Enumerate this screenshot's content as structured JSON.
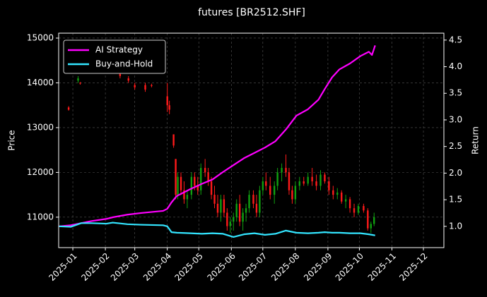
{
  "chart_data": {
    "type": "candlestick-returns",
    "title": "futures [BR2512.SHF]",
    "ylabel": "Price",
    "y2label": "Return",
    "xlim": [
      -13.5,
      353.5
    ],
    "xticks": [
      {
        "value": 0,
        "label": "2025-01"
      },
      {
        "value": 31,
        "label": "2025-02"
      },
      {
        "value": 59,
        "label": "2025-03"
      },
      {
        "value": 90,
        "label": "2025-04"
      },
      {
        "value": 120,
        "label": "2025-05"
      },
      {
        "value": 151,
        "label": "2025-06"
      },
      {
        "value": 181,
        "label": "2025-07"
      },
      {
        "value": 212,
        "label": "2025-08"
      },
      {
        "value": 243,
        "label": "2025-09"
      },
      {
        "value": 273,
        "label": "2025-10"
      },
      {
        "value": 304,
        "label": "2025-11"
      },
      {
        "value": 334,
        "label": "2025-12"
      }
    ],
    "ylim": [
      10320,
      15110
    ],
    "yticks": [
      11000,
      12000,
      13000,
      14000,
      15000
    ],
    "y2lim": [
      0.6,
      4.63
    ],
    "y2ticks": [
      {
        "value": 1,
        "label": "1.0"
      },
      1.5,
      {
        "value": 2,
        "label": "2.0"
      },
      2.5,
      {
        "value": 3,
        "label": "3.0"
      },
      3.5,
      {
        "value": 4,
        "label": "4.0"
      },
      4.5
    ],
    "grid": true,
    "legend": "upper left",
    "up_color": "#10a010",
    "down_color": "#ff1a1a",
    "candles": {
      "x": [
        -4,
        5,
        7,
        45,
        53,
        59,
        69,
        75,
        90,
        92,
        96,
        98,
        100,
        103,
        106,
        109,
        113,
        116,
        119,
        122,
        126,
        129,
        132,
        135,
        138,
        141,
        144,
        147,
        150,
        153,
        156,
        159,
        162,
        165,
        168,
        172,
        175,
        178,
        181,
        184,
        188,
        192,
        195,
        199,
        203,
        206,
        209,
        212,
        216,
        220,
        224,
        228,
        232,
        236,
        240,
        244,
        248,
        252,
        256,
        260,
        264,
        268,
        272,
        277,
        281,
        284,
        287
      ],
      "open": [
        13450,
        14050,
        14000,
        14200,
        14100,
        13950,
        13950,
        13950,
        13700,
        13500,
        12850,
        12300,
        11500,
        11900,
        11600,
        11400,
        11500,
        11900,
        11700,
        11600,
        12100,
        12000,
        11800,
        11500,
        11300,
        11100,
        11400,
        11100,
        10800,
        10900,
        11000,
        11300,
        10900,
        11100,
        11200,
        11500,
        11300,
        11100,
        11600,
        11800,
        11700,
        11500,
        11700,
        12000,
        12100,
        12000,
        11600,
        11400,
        11700,
        11800,
        11750,
        11900,
        11800,
        11700,
        11950,
        11800,
        11600,
        11500,
        11550,
        11350,
        11400,
        11200,
        11100,
        11250,
        11150,
        10750,
        10850
      ],
      "high": [
        13480,
        14150,
        14020,
        14250,
        14150,
        14000,
        14000,
        13980,
        14000,
        13600,
        12850,
        12300,
        12000,
        12000,
        11800,
        11600,
        12000,
        12000,
        11900,
        12200,
        12300,
        12100,
        11900,
        11700,
        11500,
        11500,
        11500,
        11200,
        11000,
        11100,
        11400,
        11500,
        11200,
        11300,
        11600,
        11600,
        11500,
        11700,
        11900,
        12000,
        11900,
        11800,
        12100,
        12200,
        12400,
        12100,
        11700,
        11800,
        11900,
        11900,
        12000,
        12100,
        11950,
        12050,
        12000,
        11900,
        11700,
        11650,
        11600,
        11500,
        11450,
        11300,
        11300,
        11300,
        11200,
        10900,
        11100
      ],
      "low": [
        13380,
        14000,
        13960,
        14100,
        14000,
        13850,
        13800,
        13900,
        13350,
        13300,
        12550,
        11400,
        11400,
        11500,
        11300,
        11200,
        11400,
        11600,
        11500,
        11500,
        11900,
        11700,
        11400,
        11200,
        11000,
        10900,
        11000,
        10700,
        10650,
        10700,
        10900,
        10800,
        10700,
        10900,
        11100,
        11200,
        11000,
        11000,
        11500,
        11600,
        11400,
        11300,
        11600,
        11800,
        11900,
        11500,
        11300,
        11300,
        11600,
        11700,
        11700,
        11700,
        11600,
        11600,
        11750,
        11500,
        11400,
        11400,
        11300,
        11200,
        11100,
        11000,
        11050,
        11100,
        10700,
        10650,
        10800
      ],
      "close": [
        13400,
        14100,
        13990,
        14150,
        14050,
        13900,
        13850,
        13930,
        13500,
        13400,
        12600,
        11500,
        11900,
        11600,
        11400,
        11500,
        11900,
        11700,
        11600,
        12100,
        12000,
        11800,
        11500,
        11300,
        11100,
        11400,
        11100,
        10800,
        10900,
        11000,
        11300,
        10900,
        11100,
        11200,
        11500,
        11300,
        11100,
        11600,
        11800,
        11700,
        11500,
        11700,
        12000,
        12100,
        12000,
        11600,
        11400,
        11700,
        11800,
        11750,
        11900,
        11800,
        11700,
        11950,
        11800,
        11600,
        11500,
        11550,
        11350,
        11400,
        11200,
        11100,
        11250,
        11150,
        10750,
        10850,
        11000
      ]
    },
    "x": [
      -13,
      -2,
      8,
      18,
      32,
      38,
      52,
      65,
      86,
      90,
      94,
      99,
      112,
      123,
      133,
      143,
      153,
      163,
      173,
      183,
      193,
      203,
      213,
      224,
      234,
      240,
      247,
      254,
      264,
      274,
      282,
      285,
      288
    ],
    "series": [
      {
        "name": "AI Strategy",
        "color": "#ff00ff",
        "axis": "y2",
        "values": [
          1.0,
          1.02,
          1.06,
          1.1,
          1.14,
          1.17,
          1.22,
          1.25,
          1.29,
          1.33,
          1.45,
          1.57,
          1.7,
          1.8,
          1.88,
          2.02,
          2.15,
          2.28,
          2.38,
          2.48,
          2.6,
          2.82,
          3.08,
          3.2,
          3.38,
          3.58,
          3.8,
          3.95,
          4.06,
          4.2,
          4.28,
          4.22,
          4.4
        ]
      },
      {
        "name": "Buy-and-Hold",
        "color": "#33e5ff",
        "axis": "y2",
        "values": [
          1.0,
          0.99,
          1.06,
          1.06,
          1.05,
          1.07,
          1.04,
          1.03,
          1.02,
          1.0,
          0.89,
          0.88,
          0.87,
          0.86,
          0.87,
          0.86,
          0.8,
          0.85,
          0.87,
          0.84,
          0.86,
          0.92,
          0.88,
          0.87,
          0.88,
          0.89,
          0.88,
          0.88,
          0.87,
          0.87,
          0.85,
          0.84,
          0.83
        ]
      }
    ]
  }
}
